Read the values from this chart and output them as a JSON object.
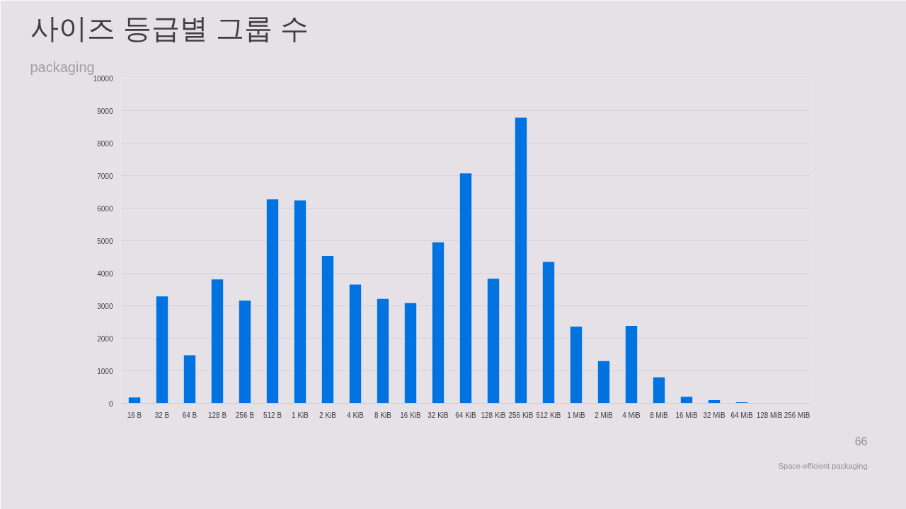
{
  "chart_data": {
    "type": "bar",
    "title": "사이즈 등급별 그룹 수",
    "subtitle": "packaging",
    "categories": [
      "16 B",
      "32 B",
      "64 B",
      "128 B",
      "256 B",
      "512 B",
      "1 KiB",
      "2 KiB",
      "4 KiB",
      "8 KiB",
      "16 KiB",
      "32 KiB",
      "64 KiB",
      "128 KiB",
      "256 KiB",
      "512 KiB",
      "1 MiB",
      "2 MiB",
      "4 MiB",
      "8 MiB",
      "16 MiB",
      "32 MiB",
      "64 MiB",
      "128 MiB",
      "256 MiB"
    ],
    "values": [
      180,
      3290,
      1480,
      3810,
      3160,
      6270,
      6240,
      4530,
      3650,
      3210,
      3080,
      4950,
      7070,
      3830,
      8780,
      4350,
      2360,
      1300,
      2380,
      800,
      200,
      100,
      30,
      0,
      0
    ],
    "color": "#0073e0",
    "ylim": [
      0,
      10000
    ],
    "yticks": [
      0,
      1000,
      2000,
      3000,
      4000,
      5000,
      6000,
      7000,
      8000,
      9000,
      10000
    ],
    "grid": "y",
    "annotations": [
      "66",
      "Space-efficient packaging"
    ]
  }
}
